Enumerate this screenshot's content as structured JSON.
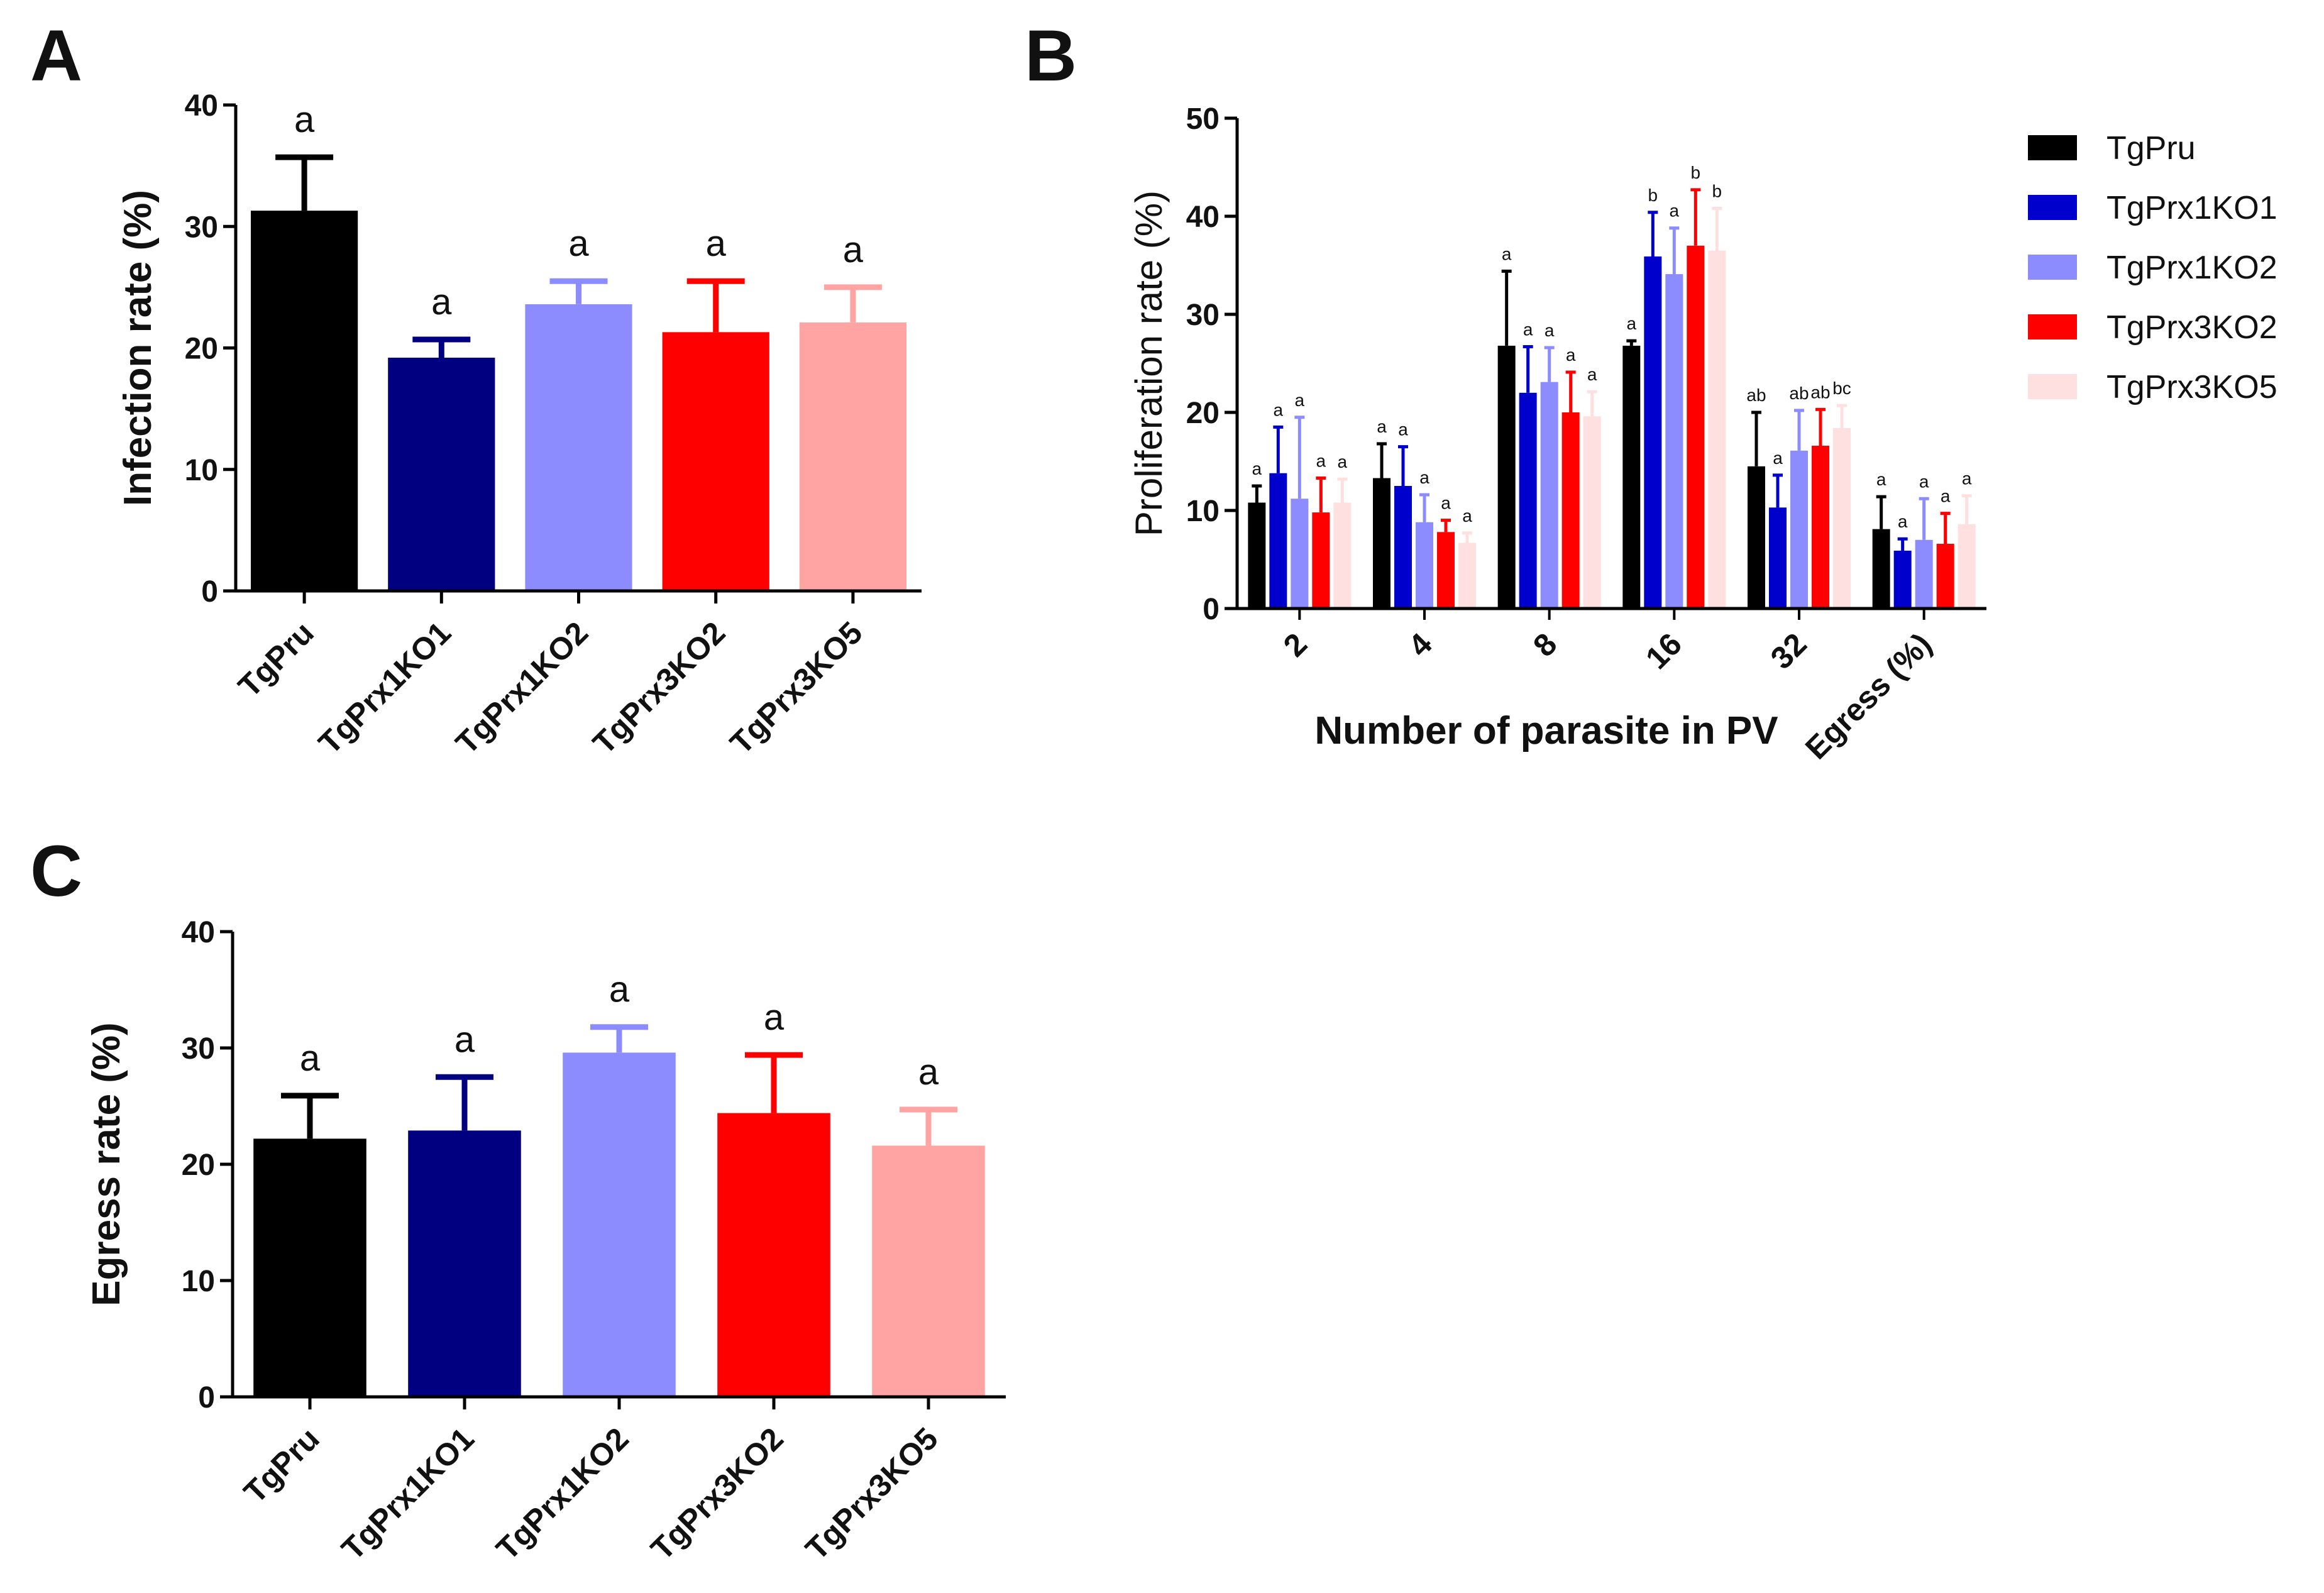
{
  "panels": {
    "A": {
      "letter": "A"
    },
    "B": {
      "letter": "B"
    },
    "C": {
      "letter": "C"
    }
  },
  "chart_data": [
    {
      "panel": "A",
      "type": "bar",
      "ylabel": "Infection rate (%)",
      "xlabel": "",
      "ylim": [
        0,
        40
      ],
      "yticks": [
        0,
        10,
        20,
        30,
        40
      ],
      "categories": [
        "TgPru",
        "TgPrx1KO1",
        "TgPrx1KO2",
        "TgPrx3KO2",
        "TgPrx3KO5"
      ],
      "values": [
        31.3,
        19.2,
        23.6,
        21.3,
        22.1
      ],
      "errors": [
        4.4,
        1.5,
        1.9,
        4.2,
        2.9
      ],
      "significance": [
        "a",
        "a",
        "a",
        "a",
        "a"
      ],
      "colors": [
        "#000000",
        "#000080",
        "#8c8cff",
        "#ff0000",
        "#ffa3a3"
      ]
    },
    {
      "panel": "B",
      "type": "bar",
      "ylabel": "Proliferation rate (%)",
      "xlabel": "Number of parasite in PV",
      "ylim": [
        0,
        50
      ],
      "yticks": [
        0,
        10,
        20,
        30,
        40,
        50
      ],
      "categories": [
        "2",
        "4",
        "8",
        "16",
        "32",
        "Egress (%)"
      ],
      "series": [
        {
          "name": "TgPru",
          "color": "#000000",
          "values": [
            10.8,
            13.3,
            26.8,
            26.8,
            14.5,
            8.1
          ],
          "errors": [
            1.7,
            3.5,
            7.6,
            0.5,
            5.5,
            3.3
          ],
          "labels": [
            "a",
            "a",
            "a",
            "a",
            "ab",
            "a"
          ]
        },
        {
          "name": "TgPrx1KO1",
          "color": "#0000cc",
          "values": [
            13.8,
            12.5,
            22.0,
            35.9,
            10.3,
            5.9
          ],
          "errors": [
            4.7,
            4.0,
            4.7,
            4.5,
            3.3,
            1.2
          ],
          "labels": [
            "a",
            "a",
            "a",
            "b",
            "a",
            "a"
          ]
        },
        {
          "name": "TgPrx1KO2",
          "color": "#8c8cff",
          "values": [
            11.2,
            8.8,
            23.1,
            34.1,
            16.1,
            7.0
          ],
          "errors": [
            8.3,
            2.8,
            3.5,
            4.7,
            4.1,
            4.2
          ],
          "labels": [
            "a",
            "a",
            "a",
            "a",
            "ab",
            "a"
          ]
        },
        {
          "name": "TgPrx3KO2",
          "color": "#ff0000",
          "values": [
            9.8,
            7.8,
            20.0,
            37.0,
            16.6,
            6.6
          ],
          "errors": [
            3.5,
            1.2,
            4.1,
            5.7,
            3.7,
            3.1
          ],
          "labels": [
            "a",
            "a",
            "a",
            "b",
            "ab",
            "a"
          ]
        },
        {
          "name": "TgPrx3KO5",
          "color": "#ffe0e0",
          "values": [
            10.8,
            6.7,
            19.6,
            36.5,
            18.4,
            8.6
          ],
          "errors": [
            2.4,
            1.0,
            2.5,
            4.3,
            2.3,
            2.9
          ],
          "labels": [
            "a",
            "a",
            "a",
            "b",
            "bc",
            "a"
          ]
        }
      ],
      "legend_position": "right"
    },
    {
      "panel": "C",
      "type": "bar",
      "ylabel": "Egress rate (%)",
      "xlabel": "",
      "ylim": [
        0,
        40
      ],
      "yticks": [
        0,
        10,
        20,
        30,
        40
      ],
      "categories": [
        "TgPru",
        "TgPrx1KO1",
        "TgPrx1KO2",
        "TgPrx3KO2",
        "TgPrx3KO5"
      ],
      "values": [
        22.2,
        22.9,
        29.6,
        24.4,
        21.6
      ],
      "errors": [
        3.7,
        4.6,
        2.2,
        5.0,
        3.1
      ],
      "significance": [
        "a",
        "a",
        "a",
        "a",
        "a"
      ],
      "colors": [
        "#000000",
        "#000080",
        "#8c8cff",
        "#ff0000",
        "#ffa3a3"
      ]
    }
  ]
}
